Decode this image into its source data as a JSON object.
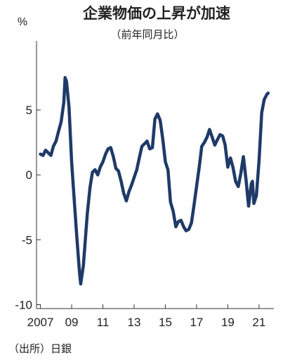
{
  "chart_data": {
    "type": "line",
    "title": "企業物価の上昇が加速",
    "subtitle": "（前年同月比）",
    "unit": "%",
    "source": "（出所）日銀",
    "line_color": "#1f3a68",
    "ylim": [
      -10,
      10
    ],
    "xlim": [
      2007.0,
      2021.75
    ],
    "y_ticks": [
      {
        "value": 5,
        "label": "5"
      },
      {
        "value": 0,
        "label": "0"
      },
      {
        "value": -5,
        "label": "-5"
      },
      {
        "value": -10,
        "label": "-10"
      }
    ],
    "x_ticks": [
      {
        "value": 2007,
        "label": "2007"
      },
      {
        "value": 2009,
        "label": "09"
      },
      {
        "value": 2011,
        "label": "11"
      },
      {
        "value": 2013,
        "label": "13"
      },
      {
        "value": 2015,
        "label": "15"
      },
      {
        "value": 2017,
        "label": "17"
      },
      {
        "value": 2019,
        "label": "19"
      },
      {
        "value": 2021,
        "label": "21"
      }
    ],
    "series": [
      {
        "values": [
          [
            2007.0,
            1.6
          ],
          [
            2007.17,
            1.5
          ],
          [
            2007.33,
            1.9
          ],
          [
            2007.5,
            1.7
          ],
          [
            2007.67,
            1.5
          ],
          [
            2007.83,
            2.2
          ],
          [
            2008.0,
            2.6
          ],
          [
            2008.17,
            3.4
          ],
          [
            2008.33,
            4.1
          ],
          [
            2008.5,
            5.6
          ],
          [
            2008.58,
            7.5
          ],
          [
            2008.67,
            7.2
          ],
          [
            2008.83,
            5.2
          ],
          [
            2009.0,
            1.0
          ],
          [
            2009.17,
            -2.0
          ],
          [
            2009.33,
            -4.8
          ],
          [
            2009.5,
            -7.5
          ],
          [
            2009.58,
            -8.4
          ],
          [
            2009.75,
            -7.0
          ],
          [
            2010.0,
            -3.0
          ],
          [
            2010.17,
            -1.0
          ],
          [
            2010.33,
            0.2
          ],
          [
            2010.5,
            0.4
          ],
          [
            2010.67,
            0.0
          ],
          [
            2010.83,
            0.6
          ],
          [
            2011.0,
            1.0
          ],
          [
            2011.17,
            1.6
          ],
          [
            2011.33,
            2.0
          ],
          [
            2011.5,
            2.1
          ],
          [
            2011.67,
            1.4
          ],
          [
            2011.83,
            0.5
          ],
          [
            2012.0,
            0.3
          ],
          [
            2012.17,
            -0.5
          ],
          [
            2012.33,
            -1.4
          ],
          [
            2012.5,
            -2.0
          ],
          [
            2012.67,
            -1.3
          ],
          [
            2012.83,
            -0.8
          ],
          [
            2013.0,
            -0.2
          ],
          [
            2013.17,
            0.4
          ],
          [
            2013.33,
            1.3
          ],
          [
            2013.5,
            2.2
          ],
          [
            2013.67,
            2.4
          ],
          [
            2013.83,
            2.6
          ],
          [
            2014.0,
            2.0
          ],
          [
            2014.17,
            2.1
          ],
          [
            2014.33,
            4.3
          ],
          [
            2014.5,
            4.7
          ],
          [
            2014.67,
            4.2
          ],
          [
            2014.83,
            2.8
          ],
          [
            2015.0,
            1.0
          ],
          [
            2015.17,
            0.4
          ],
          [
            2015.33,
            -2.1
          ],
          [
            2015.5,
            -2.8
          ],
          [
            2015.67,
            -4.0
          ],
          [
            2015.83,
            -3.6
          ],
          [
            2016.0,
            -3.5
          ],
          [
            2016.17,
            -4.0
          ],
          [
            2016.33,
            -4.3
          ],
          [
            2016.5,
            -4.2
          ],
          [
            2016.67,
            -3.7
          ],
          [
            2016.83,
            -2.4
          ],
          [
            2017.0,
            -0.9
          ],
          [
            2017.17,
            0.6
          ],
          [
            2017.33,
            2.2
          ],
          [
            2017.5,
            2.5
          ],
          [
            2017.67,
            2.9
          ],
          [
            2017.83,
            3.5
          ],
          [
            2018.0,
            2.9
          ],
          [
            2018.17,
            2.3
          ],
          [
            2018.33,
            2.7
          ],
          [
            2018.5,
            3.1
          ],
          [
            2018.67,
            3.0
          ],
          [
            2018.83,
            2.3
          ],
          [
            2019.0,
            0.6
          ],
          [
            2019.17,
            1.3
          ],
          [
            2019.33,
            0.6
          ],
          [
            2019.5,
            -0.5
          ],
          [
            2019.67,
            -0.9
          ],
          [
            2019.83,
            0.1
          ],
          [
            2020.0,
            1.4
          ],
          [
            2020.17,
            -0.4
          ],
          [
            2020.33,
            -2.4
          ],
          [
            2020.5,
            -0.7
          ],
          [
            2020.58,
            -0.5
          ],
          [
            2020.67,
            -2.2
          ],
          [
            2020.83,
            -1.6
          ],
          [
            2021.0,
            1.1
          ],
          [
            2021.17,
            4.8
          ],
          [
            2021.33,
            5.8
          ],
          [
            2021.5,
            6.2
          ],
          [
            2021.58,
            6.3
          ]
        ]
      }
    ]
  }
}
